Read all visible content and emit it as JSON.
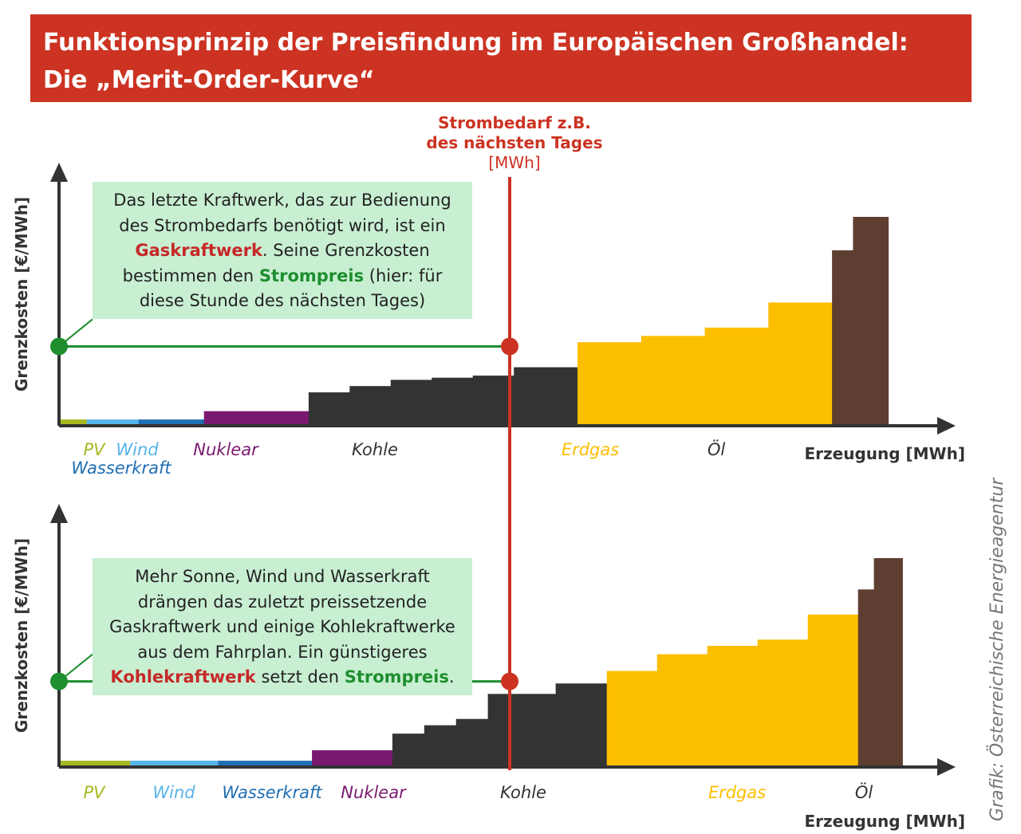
{
  "title": {
    "line1": "Funktionsprinzip der Preisfindung im Europäischen Großhandel:",
    "line2": "Die „Merit-Order-Kurve“"
  },
  "demand_label": {
    "line1": "Strombedarf z.B.",
    "line2": "des nächsten Tages",
    "line3": "[MWh]"
  },
  "credit": "Grafik: Österreichische Energieagentur",
  "colors": {
    "banner": "#cc3322",
    "demand_line": "#cc3322",
    "price_line": "#1e8e2e",
    "PV": "#a8b820",
    "Wind": "#56b4e9",
    "Wasserkraft": "#1f6fb4",
    "Nuklear": "#7a1a6e",
    "Kohle": "#333333",
    "Erdgas": "#fcbf00",
    "Öl": "#5e3e30",
    "note_bg": "#c8efd2"
  },
  "top": {
    "note": {
      "t1": "Das letzte Kraftwerk, das zur Bedienung des Strombedarfs benötigt wird, ist ein ",
      "red": "Gaskraftwerk",
      "t2": ". Seine Grenzkosten bestimmen den ",
      "green": "Strompreis",
      "t3": " (hier: für diese Stunde des nächsten Tages)"
    }
  },
  "bottom": {
    "note": {
      "t1": "Mehr Sonne, Wind und Wasserkraft drängen das zuletzt preissetzende Gaskraftwerk und einige Kohlekraftwerke aus dem Fahrplan. Ein günstigeres ",
      "red": "Kohlekraftwerk",
      "t2": " setzt den ",
      "green": "Strompreis",
      "t3": "."
    }
  },
  "chart_data": [
    {
      "type": "bar",
      "ylabel": "Grenzkosten [€/MWh]",
      "xlabel": "Erzeugung [MWh]",
      "demand": 0.5,
      "price": 0.38,
      "groups": [
        {
          "name": "PV",
          "blocks": [
            [
              0.033,
              0.03
            ]
          ]
        },
        {
          "name": "Wind",
          "blocks": [
            [
              0.062,
              0.03
            ]
          ]
        },
        {
          "name": "Wasserkraft",
          "blocks": [
            [
              0.078,
              0.03
            ]
          ]
        },
        {
          "name": "Nuklear",
          "blocks": [
            [
              0.125,
              0.07
            ]
          ]
        },
        {
          "name": "Kohle",
          "blocks": [
            [
              0.049,
              0.16
            ],
            [
              0.049,
              0.19
            ],
            [
              0.049,
              0.22
            ],
            [
              0.049,
              0.23
            ],
            [
              0.049,
              0.24
            ],
            [
              0.076,
              0.28
            ]
          ]
        },
        {
          "name": "Erdgas",
          "blocks": [
            [
              0.076,
              0.4
            ],
            [
              0.076,
              0.43
            ],
            [
              0.076,
              0.47
            ],
            [
              0.076,
              0.59
            ]
          ]
        },
        {
          "name": "Öl",
          "blocks": [
            [
              0.025,
              0.84
            ],
            [
              0.042,
              1.0
            ]
          ]
        }
      ]
    },
    {
      "type": "bar",
      "ylabel": "Grenzkosten [€/MWh]",
      "xlabel": "Erzeugung [MWh]",
      "demand": 0.5,
      "price": 0.41,
      "groups": [
        {
          "name": "PV",
          "blocks": [
            [
              0.085,
              0.03
            ]
          ]
        },
        {
          "name": "Wind",
          "blocks": [
            [
              0.105,
              0.03
            ]
          ]
        },
        {
          "name": "Wasserkraft",
          "blocks": [
            [
              0.112,
              0.03
            ]
          ]
        },
        {
          "name": "Nuklear",
          "blocks": [
            [
              0.096,
              0.08
            ]
          ]
        },
        {
          "name": "Kohle",
          "blocks": [
            [
              0.038,
              0.16
            ],
            [
              0.038,
              0.2
            ],
            [
              0.038,
              0.23
            ],
            [
              0.081,
              0.35
            ],
            [
              0.061,
              0.4
            ]
          ]
        },
        {
          "name": "Erdgas",
          "blocks": [
            [
              0.06,
              0.46
            ],
            [
              0.06,
              0.54
            ],
            [
              0.06,
              0.58
            ],
            [
              0.06,
              0.61
            ],
            [
              0.06,
              0.73
            ]
          ]
        },
        {
          "name": "Öl",
          "blocks": [
            [
              0.019,
              0.85
            ],
            [
              0.034,
              1.0
            ]
          ]
        }
      ]
    }
  ]
}
